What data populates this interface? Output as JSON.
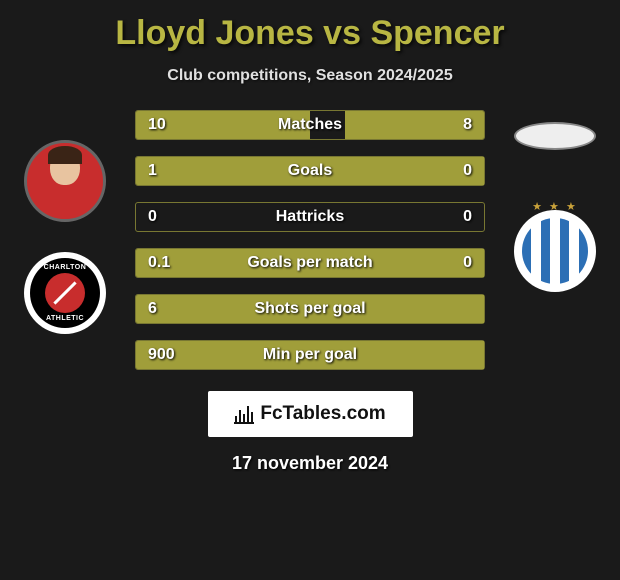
{
  "title": "Lloyd Jones vs Spencer",
  "subtitle": "Club competitions, Season 2024/2025",
  "date": "17 november 2024",
  "footer_brand": "FcTables.com",
  "colors": {
    "accent": "#b8b643",
    "bar_fill": "#a09e3a",
    "background": "#1a1a1a"
  },
  "players": {
    "left": {
      "name": "Lloyd Jones",
      "has_photo": true
    },
    "right": {
      "name": "Spencer",
      "has_photo": false
    }
  },
  "clubs": {
    "left": {
      "name": "Charlton Athletic"
    },
    "right": {
      "name": "Huddersfield Town"
    }
  },
  "stats": [
    {
      "label": "Matches",
      "left_val": "10",
      "right_val": "8",
      "left_pct": 50,
      "right_pct": 40
    },
    {
      "label": "Goals",
      "left_val": "1",
      "right_val": "0",
      "left_pct": 100,
      "right_pct": 0
    },
    {
      "label": "Hattricks",
      "left_val": "0",
      "right_val": "0",
      "left_pct": 0,
      "right_pct": 0
    },
    {
      "label": "Goals per match",
      "left_val": "0.1",
      "right_val": "0",
      "left_pct": 100,
      "right_pct": 0
    },
    {
      "label": "Shots per goal",
      "left_val": "6",
      "right_val": "",
      "left_pct": 100,
      "right_pct": 0
    },
    {
      "label": "Min per goal",
      "left_val": "900",
      "right_val": "",
      "left_pct": 100,
      "right_pct": 0
    }
  ]
}
